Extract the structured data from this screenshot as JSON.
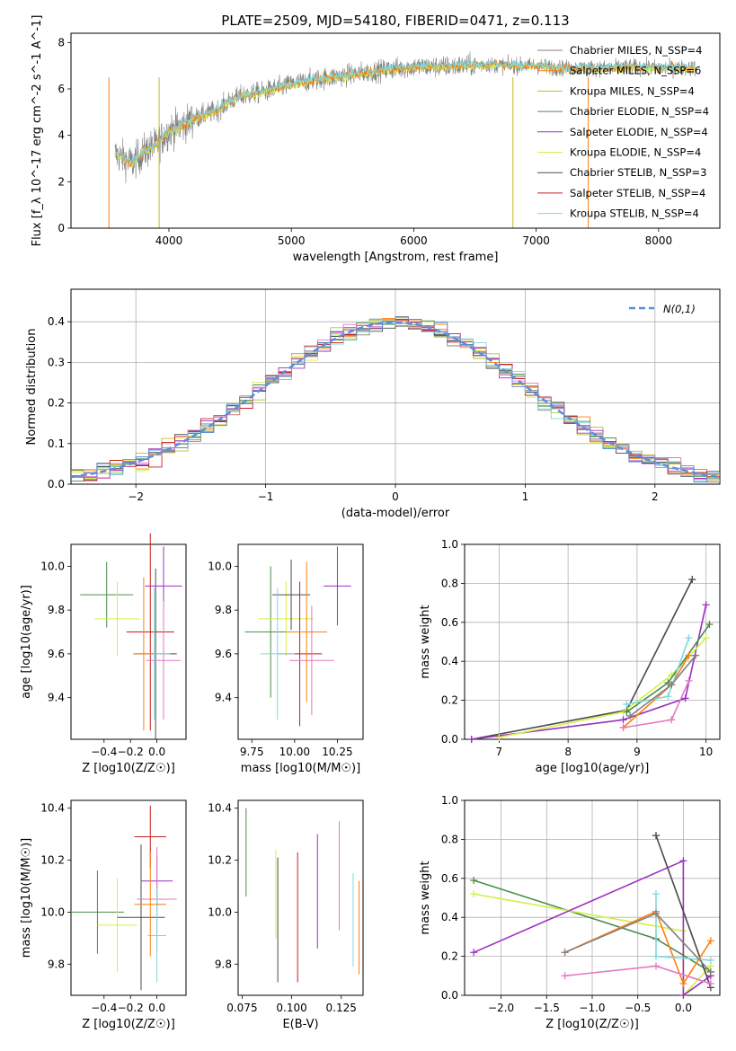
{
  "figure_title": "PLATE=2509, MJD=54180, FIBERID=0471, z=0.113",
  "colors": {
    "Chabrier MILES": "#808080",
    "Salpeter MILES": "#ff7f0e",
    "Kroupa MILES": "#bcbd22",
    "Chabrier ELODIE": "#4c8c4c",
    "Salpeter ELODIE": "#9b30c0",
    "Kroupa ELODIE": "#d4ef4a",
    "Chabrier STELIB": "#4a4a4a",
    "Salpeter STELIB": "#c81e1e",
    "Kroupa STELIB": "#7fd8dc",
    "Extra": "#e377c2",
    "Extra2": "#5b8ddb"
  },
  "chart_data": [
    {
      "type": "line",
      "panel": "spectrum",
      "title": "PLATE=2509, MJD=54180, FIBERID=0471, z=0.113",
      "xlabel": "wavelength [Angstrom, rest frame]",
      "ylabel": "Flux [f_λ 10^-17 erg cm^-2 s^-1 A^-1]",
      "xlim": [
        3200,
        8500
      ],
      "ylim": [
        0,
        8.4
      ],
      "xticks": [
        "4000",
        "5000",
        "6000",
        "7000",
        "8000"
      ],
      "yticks": [
        "0",
        "2",
        "4",
        "6",
        "8"
      ],
      "legend_position": "right",
      "legend": [
        {
          "name": "Chabrier MILES",
          "nssp": "4"
        },
        {
          "name": "Salpeter MILES",
          "nssp": "6"
        },
        {
          "name": "Kroupa MILES",
          "nssp": "4"
        },
        {
          "name": "Chabrier ELODIE",
          "nssp": "4"
        },
        {
          "name": "Salpeter ELODIE",
          "nssp": "4"
        },
        {
          "name": "Kroupa ELODIE",
          "nssp": "4"
        },
        {
          "name": "Chabrier STELIB",
          "nssp": "3"
        },
        {
          "name": "Salpeter STELIB",
          "nssp": "4"
        },
        {
          "name": "Kroupa STELIB",
          "nssp": "4"
        }
      ],
      "grid": false,
      "continuum": {
        "x": [
          3560,
          3700,
          3800,
          3900,
          4000,
          4100,
          4200,
          4300,
          4400,
          4500,
          4600,
          4800,
          5000,
          5200,
          5400,
          5600,
          5800,
          6000,
          6200,
          6400,
          6600,
          6800,
          7000,
          7200,
          7400,
          7600,
          7800,
          8000,
          8200,
          8300
        ],
        "y": [
          3.2,
          2.8,
          3.3,
          3.6,
          4.2,
          4.4,
          4.7,
          4.9,
          5.1,
          5.5,
          5.7,
          5.9,
          6.2,
          6.4,
          6.55,
          6.7,
          6.85,
          6.95,
          6.95,
          7.0,
          7.05,
          7.0,
          7.0,
          6.9,
          6.9,
          6.9,
          6.95,
          6.9,
          6.9,
          6.9
        ]
      }
    },
    {
      "type": "bar",
      "panel": "residual_histogram",
      "xlabel": "(data-model)/error",
      "ylabel": "Normed distribution",
      "xlim": [
        -2.5,
        2.5
      ],
      "ylim": [
        0,
        0.48
      ],
      "xticks": [
        "−2",
        "−1",
        "0",
        "1",
        "2"
      ],
      "yticks": [
        "0.0",
        "0.1",
        "0.2",
        "0.3",
        "0.4"
      ],
      "grid": true,
      "reference_curve": "N(0,1)",
      "legend_position": "top-right",
      "bin_width": 0.1
    },
    {
      "type": "scatter",
      "panel": "age_vs_Z",
      "xlabel": "Z [log10(Z/Z☉)]",
      "ylabel": "age [log10(age/yr)]",
      "xlim": [
        -0.65,
        0.22
      ],
      "ylim": [
        9.21,
        10.1
      ],
      "xticks": [
        "−0.4",
        "−0.2",
        "0.0"
      ],
      "yticks": [
        "9.4",
        "9.6",
        "9.8",
        "10.0"
      ],
      "points": [
        {
          "x": -0.38,
          "y": 9.87,
          "xerr": 0.2,
          "yerr": 0.15
        },
        {
          "x": -0.3,
          "y": 9.76,
          "xerr": 0.17,
          "yerr": 0.17
        },
        {
          "x": -0.01,
          "y": 9.6,
          "xerr": 0.16,
          "yerr": 0.39
        },
        {
          "x": -0.05,
          "y": 9.7,
          "xerr": 0.18,
          "yerr": 0.45
        },
        {
          "x": 0.05,
          "y": 9.91,
          "xerr": 0.14,
          "yerr": 0.18
        },
        {
          "x": 0.05,
          "y": 9.57,
          "xerr": 0.13,
          "yerr": 0.27
        },
        {
          "x": -0.02,
          "y": 9.6,
          "xerr": 0.12,
          "yerr": 0.3
        },
        {
          "x": -0.1,
          "y": 9.6,
          "xerr": 0.08,
          "yerr": 0.35
        }
      ]
    },
    {
      "type": "scatter",
      "panel": "age_vs_mass",
      "xlabel": "mass [log10(M/M☉)]",
      "ylabel": "",
      "xlim": [
        9.67,
        10.4
      ],
      "ylim": [
        9.21,
        10.1
      ],
      "xticks": [
        "9.75",
        "10.00",
        "10.25"
      ],
      "yticks": [
        "9.4",
        "9.6",
        "9.8",
        "10.0"
      ],
      "points": [
        {
          "x": 9.86,
          "y": 9.7,
          "xerr": 0.15,
          "yerr": 0.3
        },
        {
          "x": 9.95,
          "y": 9.76,
          "xerr": 0.16,
          "yerr": 0.17
        },
        {
          "x": 9.98,
          "y": 9.87,
          "xerr": 0.11,
          "yerr": 0.16
        },
        {
          "x": 10.03,
          "y": 9.6,
          "xerr": 0.13,
          "yerr": 0.33
        },
        {
          "x": 10.25,
          "y": 9.91,
          "xerr": 0.08,
          "yerr": 0.18
        },
        {
          "x": 10.1,
          "y": 9.57,
          "xerr": 0.13,
          "yerr": 0.25
        },
        {
          "x": 9.9,
          "y": 9.6,
          "xerr": 0.1,
          "yerr": 0.3
        },
        {
          "x": 10.07,
          "y": 9.7,
          "xerr": 0.12,
          "yerr": 0.32
        }
      ]
    },
    {
      "type": "line",
      "panel": "mass_weight_vs_age",
      "xlabel": "age [log10(age/yr)]",
      "ylabel": "mass weight",
      "xlim": [
        6.5,
        10.2
      ],
      "ylim": [
        0,
        1.0
      ],
      "xticks": [
        "7",
        "8",
        "9",
        "10"
      ],
      "yticks": [
        "0.0",
        "0.2",
        "0.4",
        "0.6",
        "0.8",
        "1.0"
      ],
      "grid": true,
      "series": [
        {
          "x": [
            6.6,
            8.85,
            9.8
          ],
          "y": [
            0.0,
            0.15,
            0.82
          ],
          "color_key": "Chabrier STELIB"
        },
        {
          "x": [
            6.6,
            8.8,
            9.7,
            10.0
          ],
          "y": [
            0.0,
            0.1,
            0.21,
            0.69
          ],
          "color_key": "Salpeter ELODIE"
        },
        {
          "x": [
            7.0,
            8.8,
            9.5,
            10.0
          ],
          "y": [
            0.01,
            0.14,
            0.33,
            0.52
          ],
          "color_key": "Kroupa ELODIE"
        },
        {
          "x": [
            8.85,
            9.45,
            10.05
          ],
          "y": [
            0.14,
            0.29,
            0.59
          ],
          "color_key": "Chabrier ELODIE"
        },
        {
          "x": [
            8.8,
            9.5,
            9.75
          ],
          "y": [
            0.06,
            0.28,
            0.43
          ],
          "color_key": "Salpeter MILES"
        },
        {
          "x": [
            8.8,
            9.5,
            9.75
          ],
          "y": [
            0.06,
            0.1,
            0.3
          ],
          "color_key": "Extra"
        },
        {
          "x": [
            8.85,
            9.45,
            9.75
          ],
          "y": [
            0.18,
            0.22,
            0.52
          ],
          "color_key": "Kroupa STELIB"
        },
        {
          "x": [
            8.9,
            9.5,
            9.85
          ],
          "y": [
            0.12,
            0.28,
            0.43
          ],
          "color_key": "Chabrier MILES"
        }
      ]
    },
    {
      "type": "scatter",
      "panel": "mass_vs_Z",
      "xlabel": "Z [log10(Z/Z☉)]",
      "ylabel": "mass [log10(M/M☉)]",
      "xlim": [
        -0.65,
        0.22
      ],
      "ylim": [
        9.68,
        10.43
      ],
      "xticks": [
        "−0.4",
        "−0.2",
        "0.0"
      ],
      "yticks": [
        "9.8",
        "10.0",
        "10.2",
        "10.4"
      ],
      "points": [
        {
          "x": -0.45,
          "y": 10.0,
          "xerr": 0.2,
          "yerr": 0.16
        },
        {
          "x": -0.3,
          "y": 9.95,
          "xerr": 0.15,
          "yerr": 0.18
        },
        {
          "x": -0.12,
          "y": 9.98,
          "xerr": 0.18,
          "yerr": 0.28
        },
        {
          "x": -0.05,
          "y": 10.29,
          "xerr": 0.12,
          "yerr": 0.12
        },
        {
          "x": 0.0,
          "y": 10.12,
          "xerr": 0.12,
          "yerr": 0.1
        },
        {
          "x": 0.0,
          "y": 10.05,
          "xerr": 0.15,
          "yerr": 0.2
        },
        {
          "x": 0.0,
          "y": 9.91,
          "xerr": 0.07,
          "yerr": 0.18
        },
        {
          "x": -0.05,
          "y": 10.03,
          "xerr": 0.12,
          "yerr": 0.2
        }
      ]
    },
    {
      "type": "scatter",
      "panel": "mass_vs_EBV",
      "xlabel": "E(B-V)",
      "ylabel": "",
      "xlim": [
        0.073,
        0.136
      ],
      "ylim": [
        9.68,
        10.43
      ],
      "xticks": [
        "0.075",
        "0.100",
        "0.125"
      ],
      "yticks": [
        "9.8",
        "10.0",
        "10.2",
        "10.4"
      ],
      "points": [
        {
          "x": 0.077,
          "y": 10.23,
          "yerr": 0.17
        },
        {
          "x": 0.092,
          "y": 10.07,
          "yerr": 0.17
        },
        {
          "x": 0.093,
          "y": 9.97,
          "yerr": 0.24
        },
        {
          "x": 0.103,
          "y": 9.98,
          "yerr": 0.25
        },
        {
          "x": 0.113,
          "y": 10.08,
          "yerr": 0.22
        },
        {
          "x": 0.124,
          "y": 10.14,
          "yerr": 0.21
        },
        {
          "x": 0.131,
          "y": 9.97,
          "yerr": 0.18
        },
        {
          "x": 0.134,
          "y": 9.94,
          "yerr": 0.18
        }
      ]
    },
    {
      "type": "line",
      "panel": "mass_weight_vs_Z",
      "xlabel": "Z [log10(Z/Z☉)]",
      "ylabel": "mass weight",
      "xlim": [
        -2.4,
        0.4
      ],
      "ylim": [
        0,
        1.0
      ],
      "xticks": [
        "−2.0",
        "−1.5",
        "−1.0",
        "−0.5",
        "0.0"
      ],
      "yticks": [
        "0.0",
        "0.2",
        "0.4",
        "0.6",
        "0.8",
        "1.0"
      ],
      "grid": true,
      "series": [
        {
          "x": [
            -2.3,
            -0.3,
            0.3
          ],
          "y": [
            0.59,
            0.29,
            0.12
          ],
          "color_key": "Chabrier ELODIE"
        },
        {
          "x": [
            -2.3,
            0.0,
            0.0,
            0.3
          ],
          "y": [
            0.52,
            0.33,
            0.0,
            0.15
          ],
          "color_key": "Kroupa ELODIE"
        },
        {
          "x": [
            -2.3,
            0.0,
            0.0,
            0.3
          ],
          "y": [
            0.22,
            0.69,
            0.0,
            0.1
          ],
          "color_key": "Salpeter ELODIE"
        },
        {
          "x": [
            -0.3,
            0.3
          ],
          "y": [
            0.82,
            0.04
          ],
          "color_key": "Chabrier STELIB"
        },
        {
          "x": [
            -1.3,
            -0.3,
            0.0,
            0.3
          ],
          "y": [
            0.22,
            0.43,
            0.06,
            0.28
          ],
          "color_key": "Salpeter MILES"
        },
        {
          "x": [
            -1.3,
            -0.3,
            0.3
          ],
          "y": [
            0.1,
            0.15,
            0.06
          ],
          "color_key": "Extra"
        },
        {
          "x": [
            -0.3,
            -0.3,
            0.3
          ],
          "y": [
            0.52,
            0.2,
            0.18
          ],
          "color_key": "Kroupa STELIB"
        },
        {
          "x": [
            -1.3,
            -0.3,
            0.3
          ],
          "y": [
            0.22,
            0.42,
            0.12
          ],
          "color_key": "Chabrier MILES"
        }
      ]
    }
  ]
}
